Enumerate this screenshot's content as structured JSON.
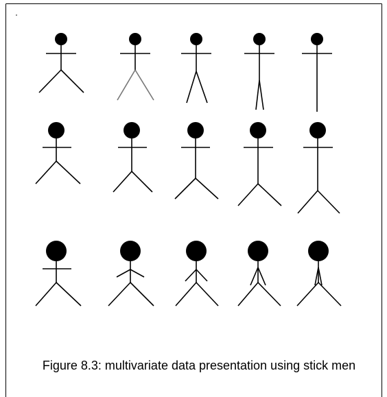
{
  "caption": "Figure 8.3: multivariate data presentation using stick men"
}
